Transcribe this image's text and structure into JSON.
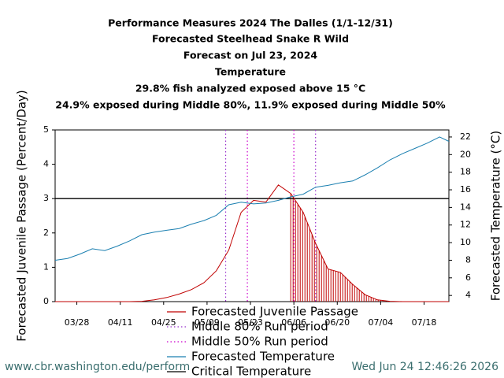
{
  "chart_data": {
    "type": "line",
    "title": "Performance Measures 2024 The Dalles (1/1-12/31)",
    "subtitles": [
      "Forecasted Steelhead Snake R Wild",
      "Forecast on Jul 23, 2024",
      "Temperature",
      "29.8% fish analyzed exposed above 15 °C",
      "24.9% exposed during Middle 80%, 11.9% exposed during Middle 50%"
    ],
    "y_label": "Forecasted Juvenile Passage (Percent/Day)",
    "y2_label": "Forecasted Temperature (°C)",
    "x": [
      "03/21",
      "03/25",
      "03/29",
      "04/02",
      "04/06",
      "04/10",
      "04/14",
      "04/18",
      "04/22",
      "04/26",
      "04/30",
      "05/04",
      "05/08",
      "05/12",
      "05/16",
      "05/20",
      "05/24",
      "05/28",
      "06/01",
      "06/05",
      "06/09",
      "06/13",
      "06/17",
      "06/21",
      "06/25",
      "06/29",
      "07/03",
      "07/07",
      "07/11",
      "07/15",
      "07/19",
      "07/23",
      "07/26"
    ],
    "xlim": [
      "03/21",
      "07/26"
    ],
    "xticks": [
      "03/28",
      "04/11",
      "04/25",
      "05/09",
      "05/23",
      "06/06",
      "06/20",
      "07/04",
      "07/18"
    ],
    "ylim": [
      0,
      5
    ],
    "yticks": [
      0,
      1,
      2,
      3,
      4,
      5
    ],
    "y2lim": [
      3.3,
      22.8
    ],
    "y2ticks": [
      4,
      6,
      8,
      10,
      12,
      14,
      16,
      18,
      20,
      22
    ],
    "series": [
      {
        "name": "Forecasted Juvenile Passage",
        "color": "#c00000",
        "shade_from": "06/05",
        "values": [
          0,
          0,
          0,
          0,
          0,
          0,
          0,
          0.01,
          0.05,
          0.12,
          0.22,
          0.35,
          0.55,
          0.9,
          1.5,
          2.6,
          2.95,
          2.9,
          3.4,
          3.15,
          2.6,
          1.7,
          0.95,
          0.85,
          0.5,
          0.2,
          0.05,
          0.01,
          0,
          0,
          0,
          0,
          0
        ]
      },
      {
        "name": "Forecasted Temperature",
        "color": "#1a7fb0",
        "axis": "y2",
        "values": [
          8.0,
          8.2,
          8.7,
          9.3,
          9.1,
          9.6,
          10.2,
          10.9,
          11.2,
          11.4,
          11.6,
          12.1,
          12.5,
          13.1,
          14.3,
          14.6,
          14.4,
          14.5,
          14.8,
          15.2,
          15.5,
          16.3,
          16.5,
          16.8,
          17.0,
          17.7,
          18.5,
          19.4,
          20.1,
          20.7,
          21.3,
          22.0,
          21.5
        ]
      }
    ],
    "run_periods": [
      {
        "name": "Middle 80% Run period",
        "color": "#9933cc",
        "range": [
          "05/15",
          "06/13"
        ]
      },
      {
        "name": "Middle 50% Run period",
        "color": "#cc00cc",
        "range": [
          "05/22",
          "06/06"
        ]
      }
    ],
    "critical": {
      "name": "Critical Temperature",
      "value": 15,
      "color": "#000000"
    },
    "footer_left": "www.cbr.washington.edu/perform",
    "footer_right": "Wed Jun 24 12:46:26 2026"
  }
}
